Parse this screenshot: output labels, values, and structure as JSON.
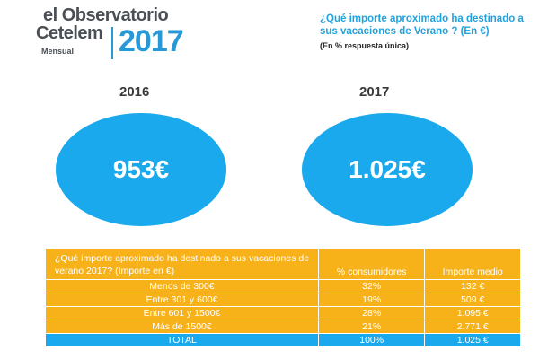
{
  "logo": {
    "line1": "el Observatorio",
    "line2": "Cetelem",
    "line3": "Mensual",
    "year": "2017"
  },
  "question": {
    "text": "¿Qué importe aproximado ha destinado a sus vacaciones de Verano  ? (En €)",
    "note": "(En % respuesta única)"
  },
  "comparison": [
    {
      "year": "2016",
      "value": "953€"
    },
    {
      "year": "2017",
      "value": "1.025€"
    }
  ],
  "table": {
    "header": {
      "question": "¿Qué importe aproximado ha destinado a sus vacaciones de verano 2017? (Importe en €)",
      "pct": "% consumidores",
      "importe": "Importe medio"
    },
    "rows": [
      {
        "label": "Menos de 300€",
        "pct": "32%",
        "importe": "132 €"
      },
      {
        "label": "Entre 301 y 600€",
        "pct": "19%",
        "importe": "509 €"
      },
      {
        "label": "Entre 601 y 1500€",
        "pct": "28%",
        "importe": "1.095 €"
      },
      {
        "label": "Más de 1500€",
        "pct": "21%",
        "importe": "2.771 €"
      }
    ],
    "total": {
      "label": "TOTAL",
      "pct": "100%",
      "importe": "1.025 €"
    }
  },
  "colors": {
    "accent_blue": "#1aa9ec",
    "table_orange": "#f7b21a",
    "logo_gray": "#4a4f56"
  }
}
